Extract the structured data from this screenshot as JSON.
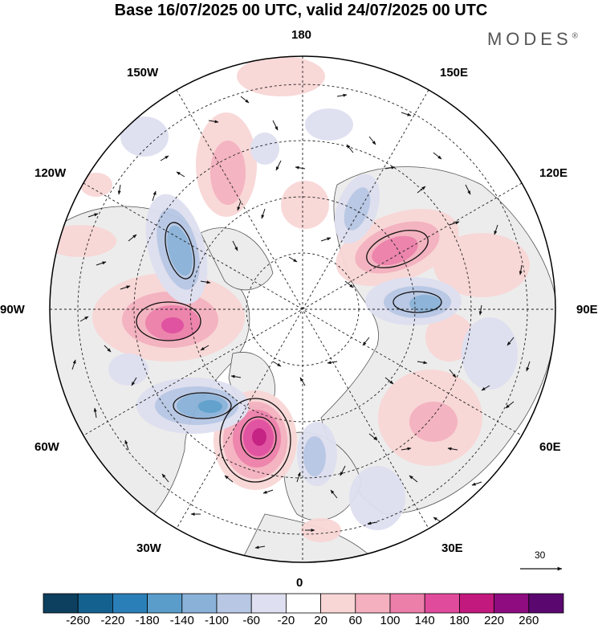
{
  "header": {
    "title": "Base 16/07/2025 00 UTC, valid 24/07/2025 00 UTC",
    "brand": "MODES",
    "brand_mark": "®"
  },
  "map": {
    "projection": "north polar stereographic",
    "longitude_labels": {
      "top": "180",
      "bottom": "0",
      "left": "90W",
      "right": "90E",
      "upper_left_1": "150W",
      "upper_left_2": "120W",
      "lower_left_1": "60W",
      "lower_left_2": "30W",
      "upper_right_1": "150E",
      "upper_right_2": "120E",
      "lower_right_1": "60E",
      "lower_right_2": "30E"
    },
    "reference_vector_label": "30",
    "colors": {
      "land_shade": "#eeeeee",
      "positive_accent": "#c2197e",
      "negative_accent": "#2b6fa8"
    }
  },
  "colorbar": {
    "ticks": [
      "-260",
      "-220",
      "-180",
      "-140",
      "-100",
      "-60",
      "-20",
      "20",
      "60",
      "100",
      "140",
      "180",
      "220",
      "260"
    ],
    "colors": [
      "#0d3f5e",
      "#14618f",
      "#2a7fb8",
      "#5a9dcb",
      "#8ab2d9",
      "#b7c7e4",
      "#dedff0",
      "#ffffff",
      "#f9d6d6",
      "#f4b0be",
      "#ec7fa9",
      "#e04b9c",
      "#c2197e",
      "#8e0c80",
      "#5a0870"
    ]
  }
}
